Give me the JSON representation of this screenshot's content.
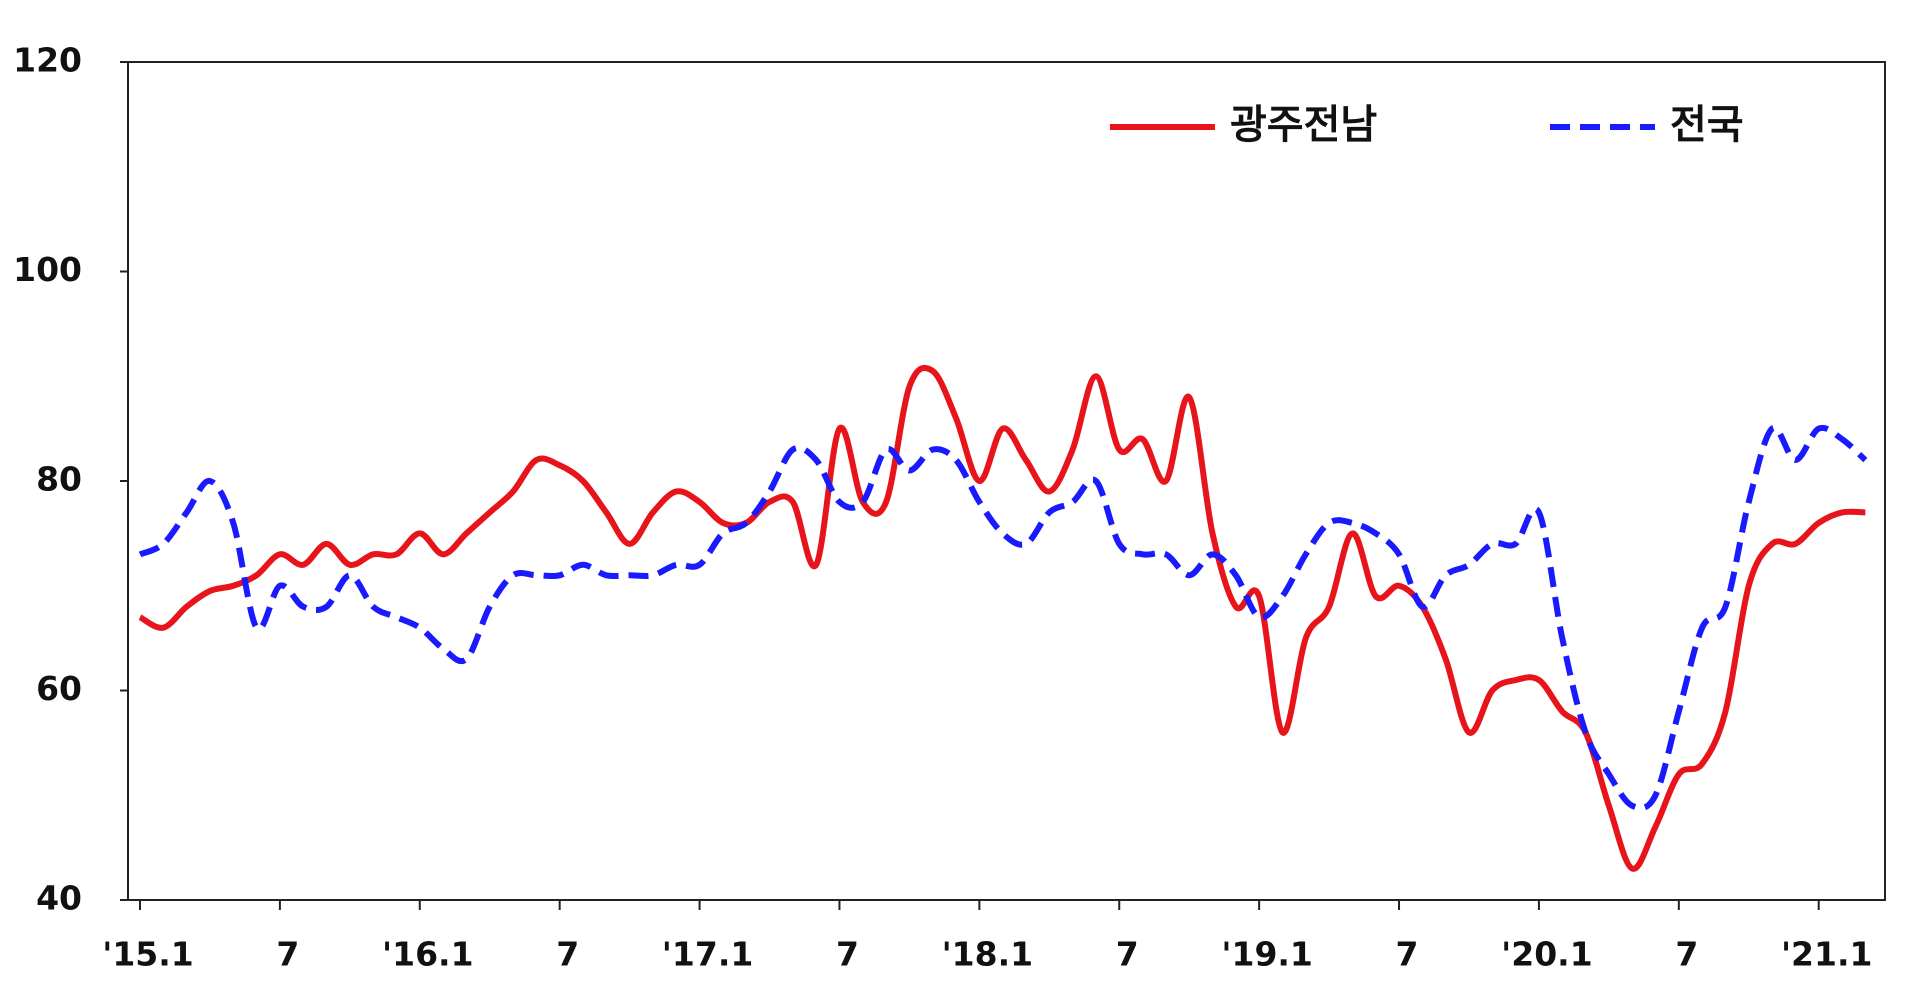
{
  "chart_data": {
    "type": "line",
    "categories": [
      "'15.1",
      null,
      null,
      null,
      null,
      null,
      "7",
      null,
      null,
      null,
      null,
      null,
      "'16.1",
      null,
      null,
      null,
      null,
      null,
      "7",
      null,
      null,
      null,
      null,
      null,
      "'17.1",
      null,
      null,
      null,
      null,
      null,
      "7",
      null,
      null,
      null,
      null,
      null,
      "'18.1",
      null,
      null,
      null,
      null,
      null,
      "7",
      null,
      null,
      null,
      null,
      null,
      "'19.1",
      null,
      null,
      null,
      null,
      null,
      "7",
      null,
      null,
      null,
      null,
      null,
      "'20.1",
      null,
      null,
      null,
      null,
      null,
      "7",
      null,
      null,
      null,
      null,
      null,
      "'21.1",
      null,
      null
    ],
    "series": [
      {
        "name": "광주전남",
        "color": "#e8141b",
        "dash": false,
        "values": [
          67,
          66,
          68,
          69.5,
          70,
          71,
          73,
          72,
          74,
          72,
          73,
          73,
          75,
          73,
          75,
          77,
          79,
          82,
          81.5,
          80,
          77,
          74,
          77,
          79,
          78,
          76,
          76,
          78,
          78,
          72,
          85,
          78,
          78,
          89,
          90.5,
          86,
          80,
          85,
          82,
          79,
          83,
          90,
          83,
          84,
          80,
          88,
          75,
          68,
          69,
          56,
          65,
          68,
          75,
          69,
          70,
          68,
          63,
          56,
          60,
          61,
          61,
          58,
          56,
          49,
          43,
          47,
          52,
          53,
          58,
          70,
          74,
          74,
          76,
          77,
          77
        ]
      },
      {
        "name": "전국",
        "color": "#1a1aff",
        "dash": true,
        "values": [
          73,
          74,
          77,
          80,
          76,
          66,
          70,
          68,
          68,
          71,
          68,
          67,
          66,
          64,
          63,
          68,
          71,
          71,
          71,
          72,
          71,
          71,
          71,
          72,
          72,
          75,
          76,
          79,
          83,
          82,
          78,
          78,
          83,
          81,
          83,
          82,
          78,
          75,
          74,
          77,
          78,
          80,
          74,
          73,
          73,
          71,
          73,
          71,
          67,
          69,
          73,
          76,
          76,
          75,
          73,
          68,
          71,
          72,
          74,
          74,
          77,
          65,
          56,
          52,
          49,
          50,
          58,
          66,
          68,
          78,
          85,
          82,
          85,
          84,
          82
        ]
      }
    ],
    "ylim": [
      40,
      120
    ],
    "yticks": [
      40,
      60,
      80,
      100,
      120
    ],
    "grid": false,
    "legend": "upper right"
  }
}
